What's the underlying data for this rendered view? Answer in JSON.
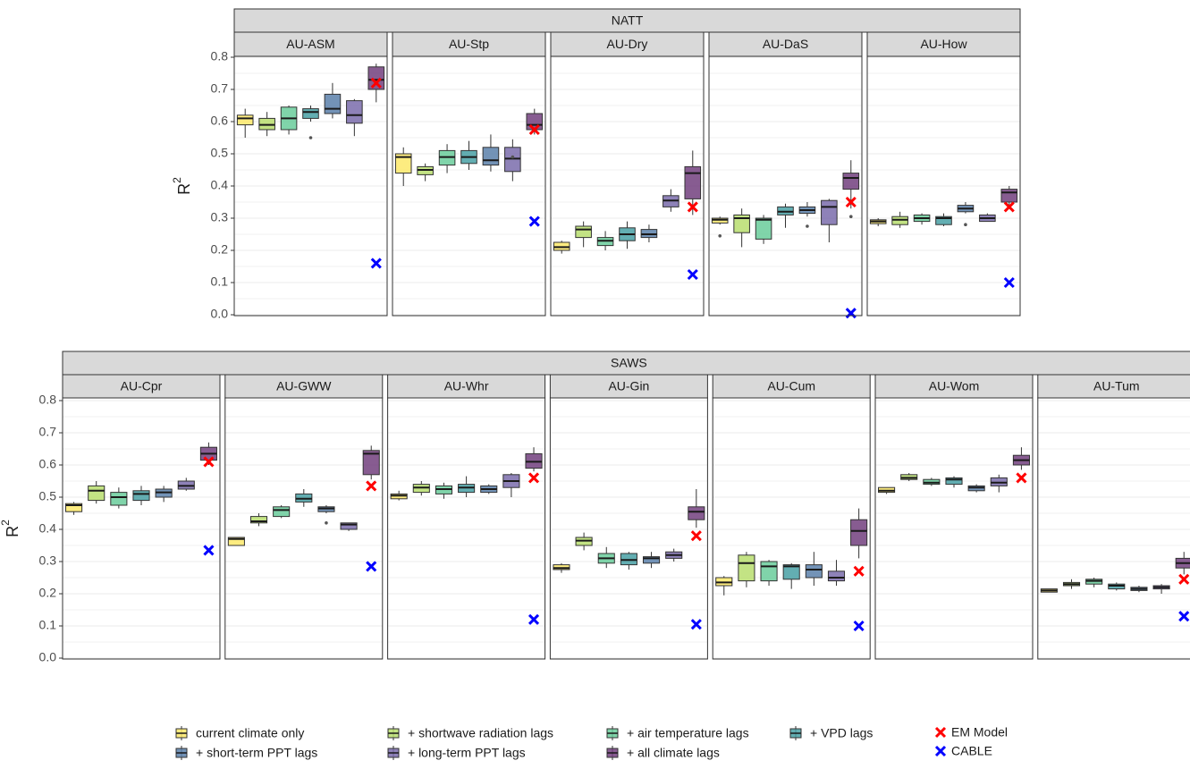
{
  "chart_data": [
    {
      "type": "boxplot",
      "title": "NATT",
      "ylabel": "R",
      "ylabel_sup": "2",
      "ylim": [
        0,
        0.8
      ],
      "yticks": [
        {
          "value": 0,
          "label": "0.0"
        },
        0.1,
        0.2,
        0.3,
        0.4,
        0.5,
        0.6,
        0.7,
        0.8
      ],
      "minor_grid": [
        0.05,
        0.15,
        0.25,
        0.35,
        0.45,
        0.55,
        0.65,
        0.75
      ],
      "grid": true,
      "panels": [
        {
          "name": "AU-ASM",
          "em_model": 0.72,
          "cable": 0.16,
          "boxes": [
            {
              "min": 0.55,
              "q1": 0.59,
              "median": 0.61,
              "q3": 0.62,
              "max": 0.64
            },
            {
              "min": 0.555,
              "q1": 0.575,
              "median": 0.59,
              "q3": 0.61,
              "max": 0.63
            },
            {
              "min": 0.56,
              "q1": 0.575,
              "median": 0.61,
              "q3": 0.645,
              "max": 0.65
            },
            {
              "min": 0.6,
              "q1": 0.61,
              "median": 0.63,
              "q3": 0.64,
              "max": 0.65,
              "outliers": [
                0.55
              ]
            },
            {
              "min": 0.61,
              "q1": 0.625,
              "median": 0.64,
              "q3": 0.685,
              "max": 0.72
            },
            {
              "min": 0.555,
              "q1": 0.595,
              "median": 0.62,
              "q3": 0.665,
              "max": 0.67
            },
            {
              "min": 0.66,
              "q1": 0.7,
              "median": 0.73,
              "q3": 0.77,
              "max": 0.78
            }
          ]
        },
        {
          "name": "AU-Stp",
          "em_model": 0.575,
          "cable": 0.29,
          "boxes": [
            {
              "min": 0.4,
              "q1": 0.44,
              "median": 0.49,
              "q3": 0.5,
              "max": 0.52
            },
            {
              "min": 0.415,
              "q1": 0.435,
              "median": 0.45,
              "q3": 0.46,
              "max": 0.47
            },
            {
              "min": 0.44,
              "q1": 0.465,
              "median": 0.49,
              "q3": 0.51,
              "max": 0.53
            },
            {
              "min": 0.45,
              "q1": 0.47,
              "median": 0.49,
              "q3": 0.51,
              "max": 0.54
            },
            {
              "min": 0.445,
              "q1": 0.465,
              "median": 0.48,
              "q3": 0.52,
              "max": 0.56
            },
            {
              "min": 0.415,
              "q1": 0.445,
              "median": 0.485,
              "q3": 0.52,
              "max": 0.545,
              "outliers": [
                0.49
              ]
            },
            {
              "min": 0.56,
              "q1": 0.575,
              "median": 0.59,
              "q3": 0.625,
              "max": 0.64
            }
          ]
        },
        {
          "name": "AU-Dry",
          "em_model": 0.335,
          "cable": 0.125,
          "boxes": [
            {
              "min": 0.19,
              "q1": 0.2,
              "median": 0.21,
              "q3": 0.225,
              "max": 0.23
            },
            {
              "min": 0.21,
              "q1": 0.24,
              "median": 0.265,
              "q3": 0.275,
              "max": 0.29
            },
            {
              "min": 0.2,
              "q1": 0.215,
              "median": 0.23,
              "q3": 0.24,
              "max": 0.26
            },
            {
              "min": 0.205,
              "q1": 0.23,
              "median": 0.25,
              "q3": 0.27,
              "max": 0.29
            },
            {
              "min": 0.225,
              "q1": 0.24,
              "median": 0.25,
              "q3": 0.265,
              "max": 0.28
            },
            {
              "min": 0.32,
              "q1": 0.335,
              "median": 0.355,
              "q3": 0.37,
              "max": 0.39
            },
            {
              "min": 0.31,
              "q1": 0.36,
              "median": 0.44,
              "q3": 0.46,
              "max": 0.51
            }
          ]
        },
        {
          "name": "AU-DaS",
          "em_model": 0.35,
          "cable": 0.005,
          "boxes": [
            {
              "min": 0.28,
              "q1": 0.285,
              "median": 0.295,
              "q3": 0.3,
              "max": 0.305,
              "outliers": [
                0.245
              ]
            },
            {
              "min": 0.21,
              "q1": 0.255,
              "median": 0.3,
              "q3": 0.31,
              "max": 0.33
            },
            {
              "min": 0.22,
              "q1": 0.235,
              "median": 0.295,
              "q3": 0.3,
              "max": 0.31
            },
            {
              "min": 0.27,
              "q1": 0.31,
              "median": 0.32,
              "q3": 0.335,
              "max": 0.345
            },
            {
              "min": 0.305,
              "q1": 0.315,
              "median": 0.325,
              "q3": 0.335,
              "max": 0.35,
              "outliers": [
                0.275
              ]
            },
            {
              "min": 0.225,
              "q1": 0.28,
              "median": 0.335,
              "q3": 0.355,
              "max": 0.36
            },
            {
              "min": 0.33,
              "q1": 0.39,
              "median": 0.425,
              "q3": 0.44,
              "max": 0.48,
              "outliers": [
                0.305
              ]
            }
          ]
        },
        {
          "name": "AU-How",
          "em_model": 0.335,
          "cable": 0.1,
          "boxes": [
            {
              "min": 0.275,
              "q1": 0.283,
              "median": 0.29,
              "q3": 0.295,
              "max": 0.3
            },
            {
              "min": 0.27,
              "q1": 0.28,
              "median": 0.295,
              "q3": 0.305,
              "max": 0.32
            },
            {
              "min": 0.28,
              "q1": 0.29,
              "median": 0.3,
              "q3": 0.31,
              "max": 0.315
            },
            {
              "min": 0.275,
              "q1": 0.28,
              "median": 0.3,
              "q3": 0.305,
              "max": 0.315
            },
            {
              "min": 0.315,
              "q1": 0.32,
              "median": 0.33,
              "q3": 0.34,
              "max": 0.35,
              "outliers": [
                0.28
              ]
            },
            {
              "min": 0.29,
              "q1": 0.29,
              "median": 0.3,
              "q3": 0.31,
              "max": 0.315
            },
            {
              "min": 0.33,
              "q1": 0.35,
              "median": 0.38,
              "q3": 0.39,
              "max": 0.4
            }
          ]
        }
      ]
    },
    {
      "type": "boxplot",
      "title": "SAWS",
      "ylabel": "R",
      "ylabel_sup": "2",
      "ylim": [
        0,
        0.8
      ],
      "yticks": [
        {
          "value": 0,
          "label": "0.0"
        },
        0.1,
        0.2,
        0.3,
        0.4,
        0.5,
        0.6,
        0.7,
        0.8
      ],
      "minor_grid": [
        0.05,
        0.15,
        0.25,
        0.35,
        0.45,
        0.55,
        0.65,
        0.75
      ],
      "grid": true,
      "panels": [
        {
          "name": "AU-Cpr",
          "em_model": 0.61,
          "cable": 0.335,
          "boxes": [
            {
              "min": 0.445,
              "q1": 0.455,
              "median": 0.475,
              "q3": 0.48,
              "max": 0.485
            },
            {
              "min": 0.48,
              "q1": 0.49,
              "median": 0.52,
              "q3": 0.535,
              "max": 0.55
            },
            {
              "min": 0.465,
              "q1": 0.475,
              "median": 0.5,
              "q3": 0.515,
              "max": 0.53
            },
            {
              "min": 0.475,
              "q1": 0.49,
              "median": 0.51,
              "q3": 0.52,
              "max": 0.535
            },
            {
              "min": 0.485,
              "q1": 0.5,
              "median": 0.515,
              "q3": 0.525,
              "max": 0.535
            },
            {
              "min": 0.52,
              "q1": 0.525,
              "median": 0.535,
              "q3": 0.55,
              "max": 0.56
            },
            {
              "min": 0.6,
              "q1": 0.615,
              "median": 0.635,
              "q3": 0.655,
              "max": 0.67
            }
          ]
        },
        {
          "name": "AU-GWW",
          "em_model": 0.535,
          "cable": 0.285,
          "boxes": [
            {
              "min": 0.35,
              "q1": 0.35,
              "median": 0.37,
              "q3": 0.375,
              "max": 0.375
            },
            {
              "min": 0.41,
              "q1": 0.42,
              "median": 0.425,
              "q3": 0.44,
              "max": 0.45
            },
            {
              "min": 0.435,
              "q1": 0.44,
              "median": 0.46,
              "q3": 0.47,
              "max": 0.475
            },
            {
              "min": 0.47,
              "q1": 0.485,
              "median": 0.495,
              "q3": 0.51,
              "max": 0.525
            },
            {
              "min": 0.45,
              "q1": 0.455,
              "median": 0.465,
              "q3": 0.47,
              "max": 0.475,
              "outliers": [
                0.42
              ]
            },
            {
              "min": 0.395,
              "q1": 0.4,
              "median": 0.415,
              "q3": 0.42,
              "max": 0.42
            },
            {
              "min": 0.555,
              "q1": 0.57,
              "median": 0.635,
              "q3": 0.645,
              "max": 0.66
            }
          ]
        },
        {
          "name": "AU-Whr",
          "em_model": 0.56,
          "cable": 0.12,
          "boxes": [
            {
              "min": 0.49,
              "q1": 0.495,
              "median": 0.505,
              "q3": 0.51,
              "max": 0.52
            },
            {
              "min": 0.505,
              "q1": 0.515,
              "median": 0.53,
              "q3": 0.54,
              "max": 0.55
            },
            {
              "min": 0.495,
              "q1": 0.51,
              "median": 0.525,
              "q3": 0.535,
              "max": 0.545
            },
            {
              "min": 0.5,
              "q1": 0.515,
              "median": 0.53,
              "q3": 0.54,
              "max": 0.565
            },
            {
              "min": 0.51,
              "q1": 0.515,
              "median": 0.525,
              "q3": 0.535,
              "max": 0.54
            },
            {
              "min": 0.5,
              "q1": 0.53,
              "median": 0.55,
              "q3": 0.57,
              "max": 0.575
            },
            {
              "min": 0.58,
              "q1": 0.59,
              "median": 0.61,
              "q3": 0.635,
              "max": 0.655
            }
          ]
        },
        {
          "name": "AU-Gin",
          "em_model": 0.38,
          "cable": 0.105,
          "boxes": [
            {
              "min": 0.265,
              "q1": 0.275,
              "median": 0.28,
              "q3": 0.29,
              "max": 0.295
            },
            {
              "min": 0.335,
              "q1": 0.35,
              "median": 0.365,
              "q3": 0.375,
              "max": 0.39
            },
            {
              "min": 0.28,
              "q1": 0.295,
              "median": 0.31,
              "q3": 0.325,
              "max": 0.345
            },
            {
              "min": 0.275,
              "q1": 0.29,
              "median": 0.305,
              "q3": 0.325,
              "max": 0.33
            },
            {
              "min": 0.28,
              "q1": 0.295,
              "median": 0.31,
              "q3": 0.315,
              "max": 0.33
            },
            {
              "min": 0.3,
              "q1": 0.31,
              "median": 0.32,
              "q3": 0.33,
              "max": 0.34
            },
            {
              "min": 0.405,
              "q1": 0.43,
              "median": 0.455,
              "q3": 0.47,
              "max": 0.525
            }
          ]
        },
        {
          "name": "AU-Cum",
          "em_model": 0.27,
          "cable": 0.1,
          "boxes": [
            {
              "min": 0.195,
              "q1": 0.225,
              "median": 0.235,
              "q3": 0.25,
              "max": 0.255
            },
            {
              "min": 0.22,
              "q1": 0.24,
              "median": 0.295,
              "q3": 0.32,
              "max": 0.33
            },
            {
              "min": 0.225,
              "q1": 0.24,
              "median": 0.285,
              "q3": 0.3,
              "max": 0.305
            },
            {
              "min": 0.215,
              "q1": 0.245,
              "median": 0.285,
              "q3": 0.29,
              "max": 0.295
            },
            {
              "min": 0.225,
              "q1": 0.25,
              "median": 0.275,
              "q3": 0.29,
              "max": 0.33
            },
            {
              "min": 0.225,
              "q1": 0.24,
              "median": 0.25,
              "q3": 0.27,
              "max": 0.305
            },
            {
              "min": 0.31,
              "q1": 0.35,
              "median": 0.395,
              "q3": 0.43,
              "max": 0.465
            }
          ]
        },
        {
          "name": "AU-Wom",
          "em_model": 0.56,
          "cable": null,
          "boxes": [
            {
              "min": 0.51,
              "q1": 0.515,
              "median": 0.52,
              "q3": 0.53,
              "max": 0.53
            },
            {
              "min": 0.55,
              "q1": 0.555,
              "median": 0.56,
              "q3": 0.57,
              "max": 0.575
            },
            {
              "min": 0.535,
              "q1": 0.54,
              "median": 0.545,
              "q3": 0.555,
              "max": 0.56
            },
            {
              "min": 0.53,
              "q1": 0.54,
              "median": 0.555,
              "q3": 0.56,
              "max": 0.565
            },
            {
              "min": 0.515,
              "q1": 0.52,
              "median": 0.53,
              "q3": 0.535,
              "max": 0.54
            },
            {
              "min": 0.515,
              "q1": 0.535,
              "median": 0.545,
              "q3": 0.56,
              "max": 0.57
            },
            {
              "min": 0.585,
              "q1": 0.6,
              "median": 0.615,
              "q3": 0.63,
              "max": 0.655
            }
          ]
        },
        {
          "name": "AU-Tum",
          "em_model": 0.245,
          "cable": 0.13,
          "boxes": [
            {
              "min": 0.205,
              "q1": 0.205,
              "median": 0.21,
              "q3": 0.215,
              "max": 0.215
            },
            {
              "min": 0.215,
              "q1": 0.225,
              "median": 0.23,
              "q3": 0.235,
              "max": 0.245
            },
            {
              "min": 0.22,
              "q1": 0.23,
              "median": 0.24,
              "q3": 0.245,
              "max": 0.25
            },
            {
              "min": 0.21,
              "q1": 0.215,
              "median": 0.225,
              "q3": 0.23,
              "max": 0.235
            },
            {
              "min": 0.205,
              "q1": 0.21,
              "median": 0.215,
              "q3": 0.22,
              "max": 0.225
            },
            {
              "min": 0.2,
              "q1": 0.215,
              "median": 0.22,
              "q3": 0.225,
              "max": 0.23
            },
            {
              "min": 0.26,
              "q1": 0.28,
              "median": 0.295,
              "q3": 0.31,
              "max": 0.33
            }
          ]
        }
      ]
    }
  ],
  "legend": {
    "series": [
      {
        "name": "current climate only",
        "color": "#fde96a"
      },
      {
        "name": "+ shortwave radiation lags",
        "color": "#b8de6f"
      },
      {
        "name": "+ air temperature lags",
        "color": "#6acc9b"
      },
      {
        "name": "+ VPD lags",
        "color": "#48a0a4"
      },
      {
        "name": "+ short-term PPT lags",
        "color": "#5a80aa"
      },
      {
        "name": "+ long-term PPT lags",
        "color": "#7a6cab"
      },
      {
        "name": "+ all climate lags",
        "color": "#72407e"
      }
    ],
    "markers": [
      {
        "name": "EM Model",
        "color": "#ff0000"
      },
      {
        "name": "CABLE",
        "color": "#0000ff"
      }
    ]
  }
}
